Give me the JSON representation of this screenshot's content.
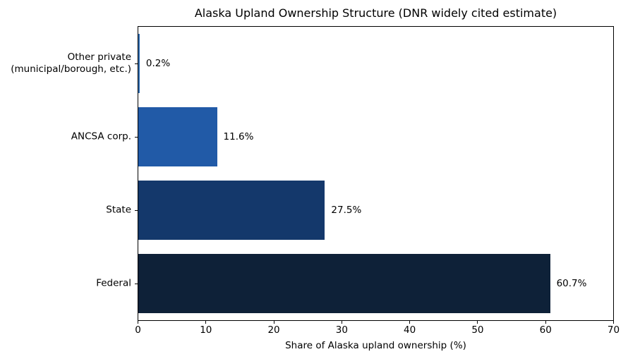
{
  "chart_data": {
    "type": "bar",
    "orientation": "horizontal",
    "title": "Alaska Upland Ownership Structure (DNR widely cited estimate)",
    "xlabel": "Share of Alaska upland ownership (%)",
    "ylabel": "",
    "categories_top_to_bottom": [
      "Other private\n(municipal/borough, etc.)",
      "ANCSA corp.",
      "State",
      "Federal"
    ],
    "values": [
      0.2,
      11.6,
      27.5,
      60.7
    ],
    "value_labels": [
      "0.2%",
      "11.6%",
      "27.5%",
      "60.7%"
    ],
    "bar_colors": [
      "#2d6cb3",
      "#215aa7",
      "#14386b",
      "#0e2138"
    ],
    "xlim": [
      0,
      70
    ],
    "xticks": [
      0,
      10,
      20,
      30,
      40,
      50,
      60,
      70
    ],
    "grid": false,
    "legend": "none",
    "bar_height_fraction": 0.8,
    "text_color": "#000000",
    "spine_color": "#000000",
    "background_color": "#ffffff"
  }
}
